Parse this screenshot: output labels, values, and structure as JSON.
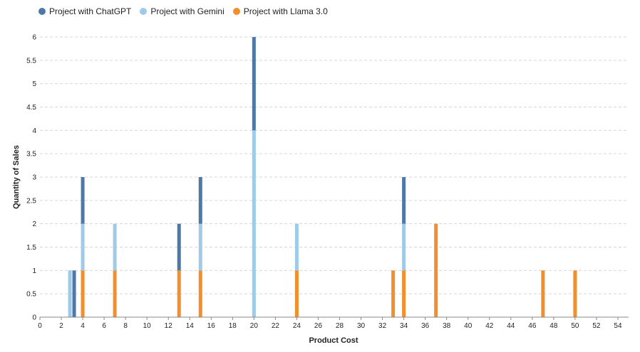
{
  "chart_data": {
    "type": "bar",
    "stacked": true,
    "xlabel": "Product Cost",
    "ylabel": "Quantity of Sales",
    "xlim": [
      0,
      55
    ],
    "ylim": [
      0,
      6
    ],
    "x_ticks": [
      0,
      2,
      4,
      6,
      8,
      10,
      12,
      14,
      16,
      18,
      20,
      22,
      24,
      26,
      28,
      30,
      32,
      34,
      36,
      38,
      40,
      42,
      44,
      46,
      48,
      50,
      52,
      54
    ],
    "y_ticks": [
      0,
      0.5,
      1,
      1.5,
      2,
      2.5,
      3,
      3.5,
      4,
      4.5,
      5,
      5.5,
      6
    ],
    "grid": true,
    "legend_position": "top-left",
    "series": [
      {
        "name": "Project with ChatGPT",
        "color": "#4e79a7",
        "points": [
          {
            "x": 3.2,
            "y": 1
          },
          {
            "x": 4,
            "y": 1
          },
          {
            "x": 13,
            "y": 1
          },
          {
            "x": 15,
            "y": 1
          },
          {
            "x": 20,
            "y": 2
          },
          {
            "x": 34,
            "y": 1
          }
        ]
      },
      {
        "name": "Project with Gemini",
        "color": "#a0cbe8",
        "points": [
          {
            "x": 2.8,
            "y": 1
          },
          {
            "x": 4,
            "y": 1
          },
          {
            "x": 7,
            "y": 1
          },
          {
            "x": 15,
            "y": 1
          },
          {
            "x": 20,
            "y": 4
          },
          {
            "x": 24,
            "y": 1
          },
          {
            "x": 34,
            "y": 1
          }
        ]
      },
      {
        "name": "Project with Llama 3.0",
        "color": "#f28e2b",
        "points": [
          {
            "x": 4,
            "y": 1
          },
          {
            "x": 7,
            "y": 1
          },
          {
            "x": 13,
            "y": 1
          },
          {
            "x": 15,
            "y": 1
          },
          {
            "x": 24,
            "y": 1
          },
          {
            "x": 33,
            "y": 1
          },
          {
            "x": 34,
            "y": 1
          },
          {
            "x": 37,
            "y": 2
          },
          {
            "x": 47,
            "y": 1
          },
          {
            "x": 50,
            "y": 1
          }
        ]
      }
    ]
  }
}
